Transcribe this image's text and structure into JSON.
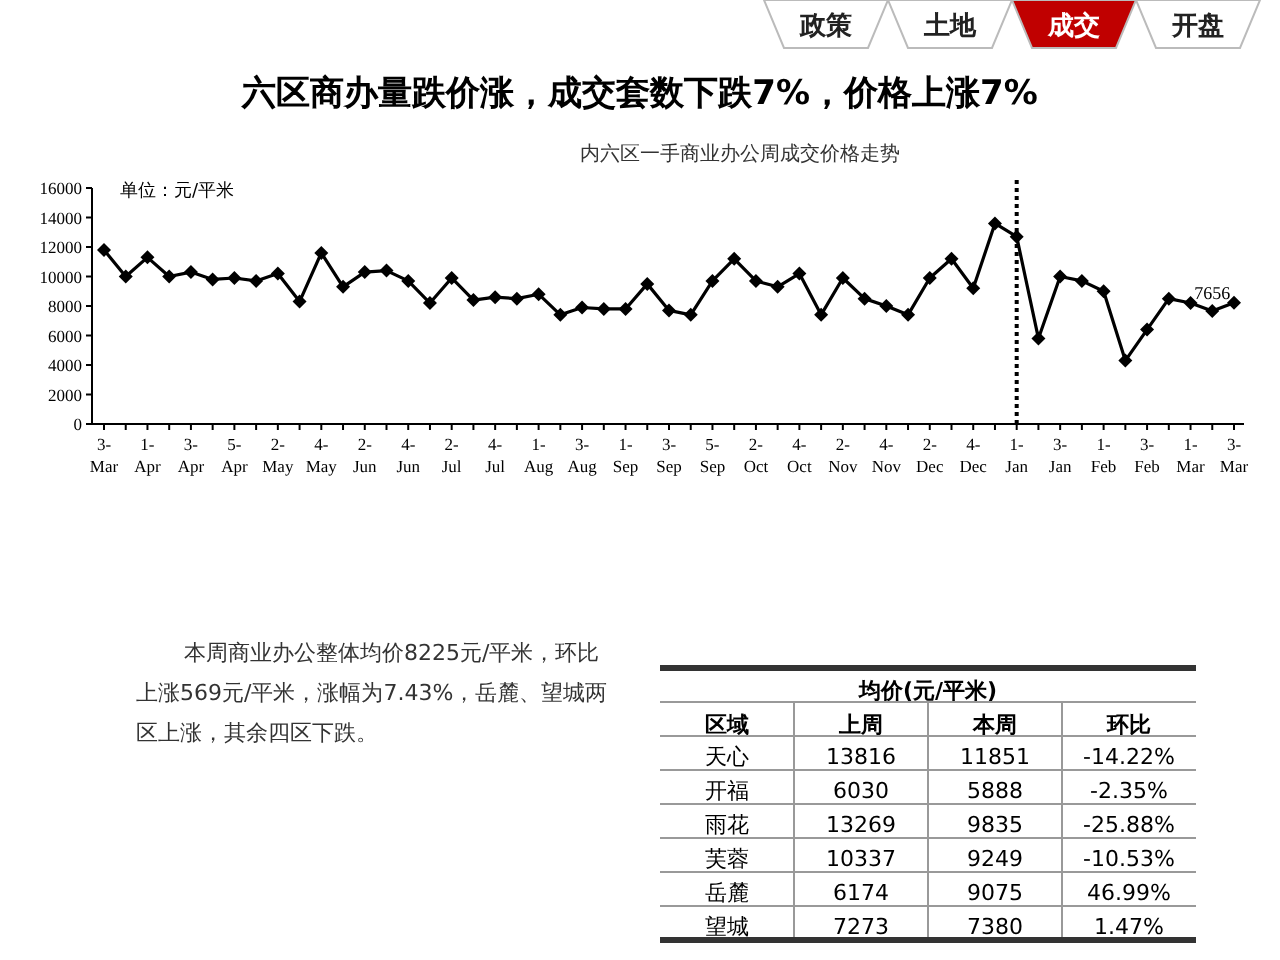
{
  "chart_data": [
    {
      "type": "other",
      "categories": [
        "政策",
        "土地",
        "成交",
        "开盘"
      ],
      "colors": [
        "#ffffff",
        "#ffffff",
        "#c00000",
        "#ffffff"
      ]
    },
    {
      "type": "line",
      "title": "六区商办量跌价涨，成交套数下跌7%，价格上涨7%",
      "subtitle": "内六区一手商业办公周成交价格走势",
      "ylabel": "单位：元/平米",
      "categories": [
        "3-Mar",
        null,
        "1-Apr",
        null,
        "3-Apr",
        null,
        "5-Apr",
        null,
        "2-May",
        null,
        "4-May",
        null,
        "2-Jun",
        null,
        "4-Jun",
        null,
        "2-Jul",
        null,
        "4-Jul",
        null,
        "1-Aug",
        null,
        "3-Aug",
        null,
        "1-Sep",
        null,
        "3-Sep",
        null,
        "5-Sep",
        null,
        "2-Oct",
        null,
        "4-Oct",
        null,
        "2-Nov",
        null,
        "4-Nov",
        null,
        "2-Dec",
        null,
        "4-Dec",
        null,
        "1-Jan",
        null,
        "3-Jan",
        null,
        "1-Feb",
        null,
        "3-Feb",
        null,
        "1-Mar",
        null,
        "3-Mar"
      ],
      "series": [
        {
          "color": "#000000",
          "values": [
            11800,
            10000,
            11300,
            10000,
            10300,
            9800,
            9900,
            9700,
            10200,
            8300,
            11600,
            9300,
            10300,
            10400,
            9700,
            8200,
            9900,
            8400,
            8600,
            8500,
            8800,
            7400,
            7900,
            7800,
            7800,
            9500,
            7700,
            7400,
            9700,
            11200,
            9700,
            9300,
            10200,
            7400,
            9900,
            8500,
            8000,
            7400,
            9900,
            11200,
            9200,
            13600,
            12700,
            5800,
            10000,
            9700,
            9000,
            4300,
            6400,
            8500,
            8200,
            7656,
            8225
          ],
          "value_labels": [
            null,
            null,
            null,
            null,
            null,
            null,
            null,
            null,
            null,
            null,
            null,
            null,
            null,
            null,
            null,
            null,
            null,
            null,
            null,
            null,
            null,
            null,
            null,
            null,
            null,
            null,
            null,
            null,
            null,
            null,
            null,
            null,
            null,
            null,
            null,
            null,
            null,
            null,
            null,
            null,
            null,
            null,
            null,
            null,
            null,
            null,
            null,
            null,
            null,
            null,
            null,
            "7656",
            null
          ]
        }
      ],
      "ylim": [
        0,
        16000
      ],
      "yticks": [
        0,
        2000,
        4000,
        6000,
        8000,
        10000,
        12000,
        14000,
        16000
      ],
      "grid": false,
      "marker": "diamond",
      "line_style": "solid",
      "ref_lines": [
        {
          "axis": "x",
          "value": "1-Jan",
          "line_style": "dotted",
          "color": "#000000"
        }
      ],
      "annotations": [
        "本周商业办公整体均价8225元/平米，环比上涨569元/平米，涨幅为7.43%，岳麓、望城两区上涨，其余四区下跌。"
      ]
    },
    {
      "type": "other",
      "title": "均价(元/平米)",
      "categories": [
        "区域",
        "上周",
        "本周",
        "环比"
      ],
      "y_categories": [
        "天心",
        "开福",
        "雨花",
        "芙蓉",
        "岳麓",
        "望城"
      ],
      "cell_labels": [
        [
          "13816",
          "11851",
          "-14.22%"
        ],
        [
          "6030",
          "5888",
          "-2.35%"
        ],
        [
          "13269",
          "9835",
          "-25.88%"
        ],
        [
          "10337",
          "9249",
          "-10.53%"
        ],
        [
          "6174",
          "9075",
          "46.99%"
        ],
        [
          "7273",
          "7380",
          "1.47%"
        ]
      ]
    }
  ]
}
